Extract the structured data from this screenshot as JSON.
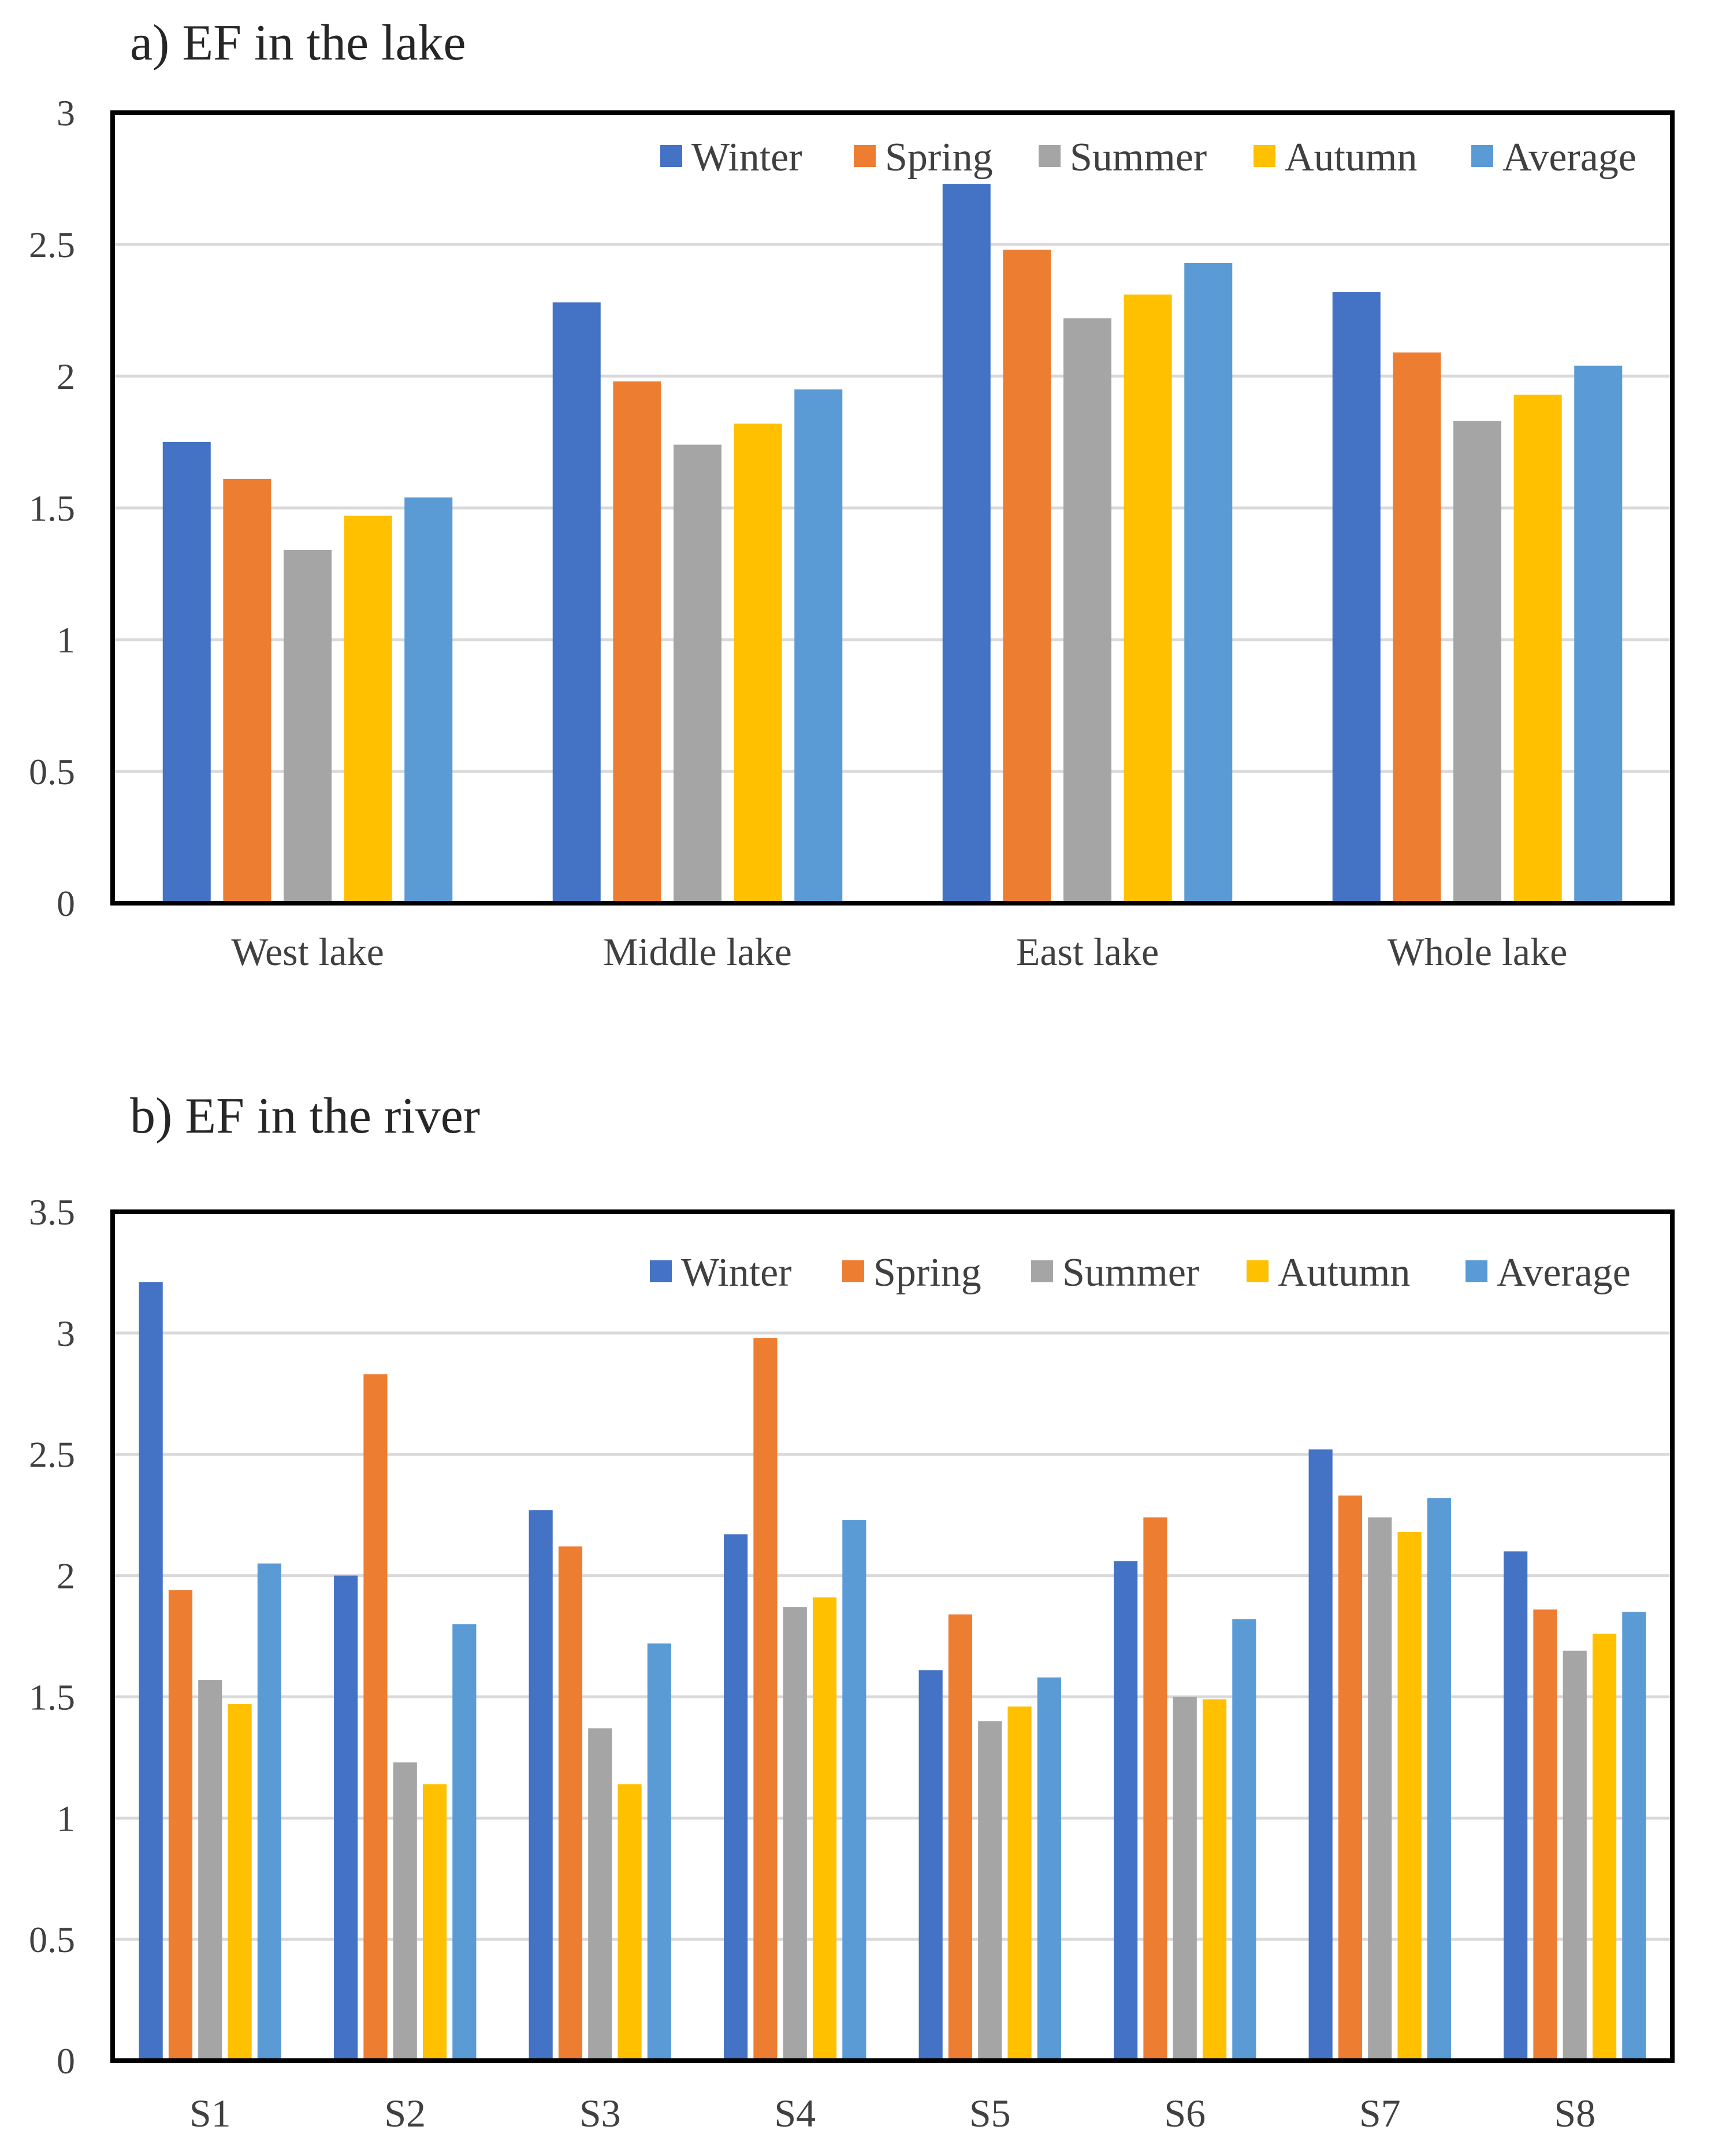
{
  "chart_data": [
    {
      "type": "bar",
      "title": "a) EF in the lake",
      "xlabel": "",
      "ylabel": "",
      "ylim": [
        0,
        3
      ],
      "yticks": [
        0,
        0.5,
        1,
        1.5,
        2,
        2.5,
        3
      ],
      "ytick_labels": [
        "0",
        "0.5",
        "1",
        "1.5",
        "2",
        "2.5",
        "3"
      ],
      "grid": true,
      "legend_position": "top-right",
      "categories": [
        "West lake",
        "Middle lake",
        "East lake",
        "Whole lake"
      ],
      "series": [
        {
          "name": "Winter",
          "color": "#4472C4",
          "values": [
            1.75,
            2.28,
            2.73,
            2.32
          ]
        },
        {
          "name": "Spring",
          "color": "#ED7D31",
          "values": [
            1.61,
            1.98,
            2.48,
            2.09
          ]
        },
        {
          "name": "Summer",
          "color": "#A5A5A5",
          "values": [
            1.34,
            1.74,
            2.22,
            1.83
          ]
        },
        {
          "name": "Autumn",
          "color": "#FFC000",
          "values": [
            1.47,
            1.82,
            2.31,
            1.93
          ]
        },
        {
          "name": "Average",
          "color": "#5B9BD5",
          "values": [
            1.54,
            1.95,
            2.43,
            2.04
          ]
        }
      ]
    },
    {
      "type": "bar",
      "title": "b) EF in the river",
      "xlabel": "",
      "ylabel": "",
      "ylim": [
        0,
        3.5
      ],
      "yticks": [
        0,
        0.5,
        1,
        1.5,
        2,
        2.5,
        3,
        3.5
      ],
      "ytick_labels": [
        "0",
        "0.5",
        "1",
        "1.5",
        "2",
        "2.5",
        "3",
        "3.5"
      ],
      "grid": true,
      "legend_position": "top-right",
      "categories": [
        "S1",
        "S2",
        "S3",
        "S4",
        "S5",
        "S6",
        "S7",
        "S8"
      ],
      "series": [
        {
          "name": "Winter",
          "color": "#4472C4",
          "values": [
            3.21,
            2.0,
            2.27,
            2.17,
            1.61,
            2.06,
            2.52,
            2.1
          ]
        },
        {
          "name": "Spring",
          "color": "#ED7D31",
          "values": [
            1.94,
            2.83,
            2.12,
            2.98,
            1.84,
            2.24,
            2.33,
            1.86
          ]
        },
        {
          "name": "Summer",
          "color": "#A5A5A5",
          "values": [
            1.57,
            1.23,
            1.37,
            1.87,
            1.4,
            1.5,
            2.24,
            1.69
          ]
        },
        {
          "name": "Autumn",
          "color": "#FFC000",
          "values": [
            1.47,
            1.14,
            1.14,
            1.91,
            1.46,
            1.49,
            2.18,
            1.76
          ]
        },
        {
          "name": "Average",
          "color": "#5B9BD5",
          "values": [
            2.05,
            1.8,
            1.72,
            2.23,
            1.58,
            1.82,
            2.32,
            1.85
          ]
        }
      ]
    }
  ]
}
